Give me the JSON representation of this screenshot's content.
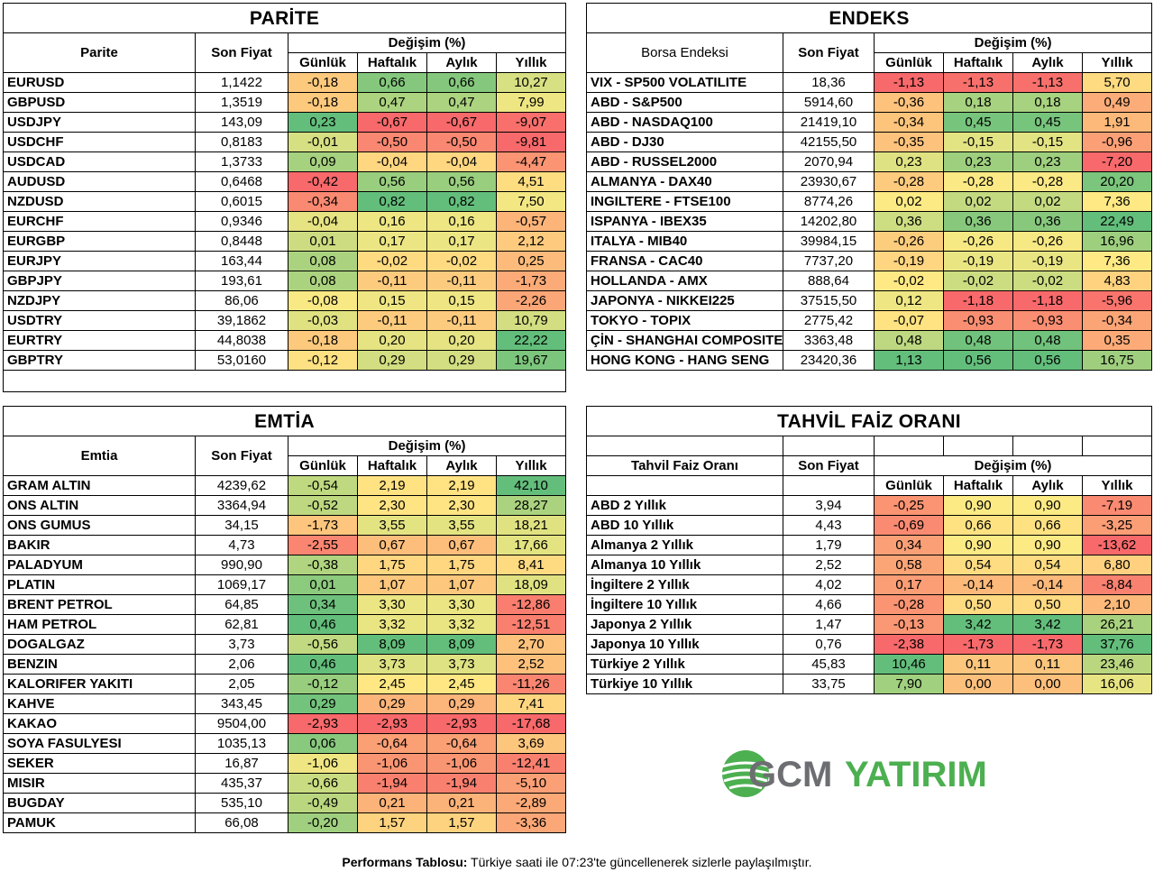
{
  "parite": {
    "title": "PARİTE",
    "col_name": "Parite",
    "col_price": "Son Fiyat",
    "col_change": "Değişim (%)",
    "sub": [
      "Günlük",
      "Haftalık",
      "Aylık",
      "Yıllık"
    ],
    "rows": [
      {
        "name": "EURUSD",
        "price": "1,1422",
        "vals": [
          "-0,18",
          "0,66",
          "0,66",
          "10,27"
        ]
      },
      {
        "name": "GBPUSD",
        "price": "1,3519",
        "vals": [
          "-0,18",
          "0,47",
          "0,47",
          "7,99"
        ]
      },
      {
        "name": "USDJPY",
        "price": "143,09",
        "vals": [
          "0,23",
          "-0,67",
          "-0,67",
          "-9,07"
        ]
      },
      {
        "name": "USDCHF",
        "price": "0,8183",
        "vals": [
          "-0,01",
          "-0,50",
          "-0,50",
          "-9,81"
        ]
      },
      {
        "name": "USDCAD",
        "price": "1,3733",
        "vals": [
          "0,09",
          "-0,04",
          "-0,04",
          "-4,47"
        ]
      },
      {
        "name": "AUDUSD",
        "price": "0,6468",
        "vals": [
          "-0,42",
          "0,56",
          "0,56",
          "4,51"
        ]
      },
      {
        "name": "NZDUSD",
        "price": "0,6015",
        "vals": [
          "-0,34",
          "0,82",
          "0,82",
          "7,50"
        ]
      },
      {
        "name": "EURCHF",
        "price": "0,9346",
        "vals": [
          "-0,04",
          "0,16",
          "0,16",
          "-0,57"
        ]
      },
      {
        "name": "EURGBP",
        "price": "0,8448",
        "vals": [
          "0,01",
          "0,17",
          "0,17",
          "2,12"
        ]
      },
      {
        "name": "EURJPY",
        "price": "163,44",
        "vals": [
          "0,08",
          "-0,02",
          "-0,02",
          "0,25"
        ]
      },
      {
        "name": "GBPJPY",
        "price": "193,61",
        "vals": [
          "0,08",
          "-0,11",
          "-0,11",
          "-1,73"
        ]
      },
      {
        "name": "NZDJPY",
        "price": "86,06",
        "vals": [
          "-0,08",
          "0,15",
          "0,15",
          "-2,26"
        ]
      },
      {
        "name": "USDTRY",
        "price": "39,1862",
        "vals": [
          "-0,03",
          "-0,11",
          "-0,11",
          "10,79"
        ]
      },
      {
        "name": "EURTRY",
        "price": "44,8038",
        "vals": [
          "-0,18",
          "0,20",
          "0,20",
          "22,22"
        ]
      },
      {
        "name": "GBPTRY",
        "price": "53,0160",
        "vals": [
          "-0,12",
          "0,29",
          "0,29",
          "19,67"
        ]
      }
    ]
  },
  "endeks": {
    "title": "ENDEKS",
    "col_name": "Borsa Endeksi",
    "col_price": "Son Fiyat",
    "col_change": "Değişim (%)",
    "sub": [
      "Günlük",
      "Haftalık",
      "Aylık",
      "Yıllık"
    ],
    "rows": [
      {
        "name": "VIX  - SP500 VOLATILITE",
        "price": "18,36",
        "vals": [
          "-1,13",
          "-1,13",
          "-1,13",
          "5,70"
        ]
      },
      {
        "name": "ABD - S&P500",
        "price": "5914,60",
        "vals": [
          "-0,36",
          "0,18",
          "0,18",
          "0,49"
        ]
      },
      {
        "name": "ABD - NASDAQ100",
        "price": "21419,10",
        "vals": [
          "-0,34",
          "0,45",
          "0,45",
          "1,91"
        ]
      },
      {
        "name": "ABD - DJ30",
        "price": "42155,50",
        "vals": [
          "-0,35",
          "-0,15",
          "-0,15",
          "-0,96"
        ]
      },
      {
        "name": "ABD - RUSSEL2000",
        "price": "2070,94",
        "vals": [
          "0,23",
          "0,23",
          "0,23",
          "-7,20"
        ]
      },
      {
        "name": "ALMANYA - DAX40",
        "price": "23930,67",
        "vals": [
          "-0,28",
          "-0,28",
          "-0,28",
          "20,20"
        ]
      },
      {
        "name": "INGILTERE - FTSE100",
        "price": "8774,26",
        "vals": [
          "0,02",
          "0,02",
          "0,02",
          "7,36"
        ]
      },
      {
        "name": "ISPANYA - IBEX35",
        "price": "14202,80",
        "vals": [
          "0,36",
          "0,36",
          "0,36",
          "22,49"
        ]
      },
      {
        "name": "ITALYA - MIB40",
        "price": "39984,15",
        "vals": [
          "-0,26",
          "-0,26",
          "-0,26",
          "16,96"
        ]
      },
      {
        "name": "FRANSA - CAC40",
        "price": "7737,20",
        "vals": [
          "-0,19",
          "-0,19",
          "-0,19",
          "7,36"
        ]
      },
      {
        "name": "HOLLANDA - AMX",
        "price": "888,64",
        "vals": [
          "-0,02",
          "-0,02",
          "-0,02",
          "4,83"
        ]
      },
      {
        "name": "JAPONYA - NIKKEI225",
        "price": "37515,50",
        "vals": [
          "0,12",
          "-1,18",
          "-1,18",
          "-5,96"
        ]
      },
      {
        "name": "TOKYO - TOPIX",
        "price": "2775,42",
        "vals": [
          "-0,07",
          "-0,93",
          "-0,93",
          "-0,34"
        ]
      },
      {
        "name": "ÇİN - SHANGHAI COMPOSITE",
        "price": "3363,48",
        "vals": [
          "0,48",
          "0,48",
          "0,48",
          "0,35"
        ]
      },
      {
        "name": "HONG KONG - HANG SENG",
        "price": "23420,36",
        "vals": [
          "1,13",
          "0,56",
          "0,56",
          "16,75"
        ]
      }
    ]
  },
  "emtia": {
    "title": "EMTİA",
    "col_name": "Emtia",
    "col_price": "Son Fiyat",
    "col_change": "Değişim (%)",
    "sub": [
      "Günlük",
      "Haftalık",
      "Aylık",
      "Yıllık"
    ],
    "rows": [
      {
        "name": "GRAM ALTIN",
        "price": "4239,62",
        "vals": [
          "-0,54",
          "2,19",
          "2,19",
          "42,10"
        ]
      },
      {
        "name": "ONS ALTIN",
        "price": "3364,94",
        "vals": [
          "-0,52",
          "2,30",
          "2,30",
          "28,27"
        ]
      },
      {
        "name": "ONS GUMUS",
        "price": "34,15",
        "vals": [
          "-1,73",
          "3,55",
          "3,55",
          "18,21"
        ]
      },
      {
        "name": "BAKIR",
        "price": "4,73",
        "vals": [
          "-2,55",
          "0,67",
          "0,67",
          "17,66"
        ]
      },
      {
        "name": "PALADYUM",
        "price": "990,90",
        "vals": [
          "-0,38",
          "1,75",
          "1,75",
          "8,41"
        ]
      },
      {
        "name": "PLATIN",
        "price": "1069,17",
        "vals": [
          "0,01",
          "1,07",
          "1,07",
          "18,09"
        ]
      },
      {
        "name": "BRENT PETROL",
        "price": "64,85",
        "vals": [
          "0,34",
          "3,30",
          "3,30",
          "-12,86"
        ]
      },
      {
        "name": "HAM PETROL",
        "price": "62,81",
        "vals": [
          "0,46",
          "3,32",
          "3,32",
          "-12,51"
        ]
      },
      {
        "name": "DOGALGAZ",
        "price": "3,73",
        "vals": [
          "-0,56",
          "8,09",
          "8,09",
          "2,70"
        ]
      },
      {
        "name": "BENZIN",
        "price": "2,06",
        "vals": [
          "0,46",
          "3,73",
          "3,73",
          "2,52"
        ]
      },
      {
        "name": "KALORIFER YAKITI",
        "price": "2,05",
        "vals": [
          "-0,12",
          "2,45",
          "2,45",
          "-11,26"
        ]
      },
      {
        "name": "KAHVE",
        "price": "343,45",
        "vals": [
          "0,29",
          "0,29",
          "0,29",
          "7,41"
        ]
      },
      {
        "name": "KAKAO",
        "price": "9504,00",
        "vals": [
          "-2,93",
          "-2,93",
          "-2,93",
          "-17,68"
        ]
      },
      {
        "name": "SOYA FASULYESI",
        "price": "1035,13",
        "vals": [
          "0,06",
          "-0,64",
          "-0,64",
          "3,69"
        ]
      },
      {
        "name": "SEKER",
        "price": "16,87",
        "vals": [
          "-1,06",
          "-1,06",
          "-1,06",
          "-12,41"
        ]
      },
      {
        "name": "MISIR",
        "price": "435,37",
        "vals": [
          "-0,66",
          "-1,94",
          "-1,94",
          "-5,10"
        ]
      },
      {
        "name": "BUGDAY",
        "price": "535,10",
        "vals": [
          "-0,49",
          "0,21",
          "0,21",
          "-2,89"
        ]
      },
      {
        "name": "PAMUK",
        "price": "66,08",
        "vals": [
          "-0,20",
          "1,57",
          "1,57",
          "-3,36"
        ]
      }
    ]
  },
  "tahvil": {
    "title": "TAHVİL FAİZ ORANI",
    "col_name": "Tahvil Faiz Oranı",
    "col_price": "Son Fiyat",
    "col_change": "Değişim (%)",
    "sub": [
      "Günlük",
      "Haftalık",
      "Aylık",
      "Yıllık"
    ],
    "rows": [
      {
        "name": "ABD 2 Yıllık",
        "price": "3,94",
        "vals": [
          "-0,25",
          "0,90",
          "0,90",
          "-7,19"
        ]
      },
      {
        "name": "ABD 10 Yıllık",
        "price": "4,43",
        "vals": [
          "-0,69",
          "0,66",
          "0,66",
          "-3,25"
        ]
      },
      {
        "name": "Almanya 2 Yıllık",
        "price": "1,79",
        "vals": [
          "0,34",
          "0,90",
          "0,90",
          "-13,62"
        ]
      },
      {
        "name": "Almanya 10 Yıllık",
        "price": "2,52",
        "vals": [
          "0,58",
          "0,54",
          "0,54",
          "6,80"
        ]
      },
      {
        "name": "İngiltere 2 Yıllık",
        "price": "4,02",
        "vals": [
          "0,17",
          "-0,14",
          "-0,14",
          "-8,84"
        ]
      },
      {
        "name": "İngiltere 10 Yıllık",
        "price": "4,66",
        "vals": [
          "-0,28",
          "0,50",
          "0,50",
          "2,10"
        ]
      },
      {
        "name": "Japonya 2 Yıllık",
        "price": "1,47",
        "vals": [
          "-0,13",
          "3,42",
          "3,42",
          "26,21"
        ]
      },
      {
        "name": "Japonya 10 Yıllık",
        "price": "0,76",
        "vals": [
          "-2,38",
          "-1,73",
          "-1,73",
          "37,76"
        ]
      },
      {
        "name": "Türkiye 2 Yıllık",
        "price": "45,83",
        "vals": [
          "10,46",
          "0,11",
          "0,11",
          "23,46"
        ]
      },
      {
        "name": "Türkiye 10 Yıllık",
        "price": "33,75",
        "vals": [
          "7,90",
          "0,00",
          "0,00",
          "16,06"
        ]
      }
    ]
  },
  "logo": {
    "gcm": "GCM",
    "yatirim": "YATIRIM",
    "green": "#4caf50",
    "gray": "#6d6e71"
  },
  "footer": {
    "label": "Performans Tablosu:",
    "text": " Türkiye saati ile 07:23'te güncellenerek sizlerle paylaşılmıştır."
  },
  "colors": {
    "red": "#f8696b",
    "yellow": "#ffeb84",
    "green": "#63be7b"
  }
}
